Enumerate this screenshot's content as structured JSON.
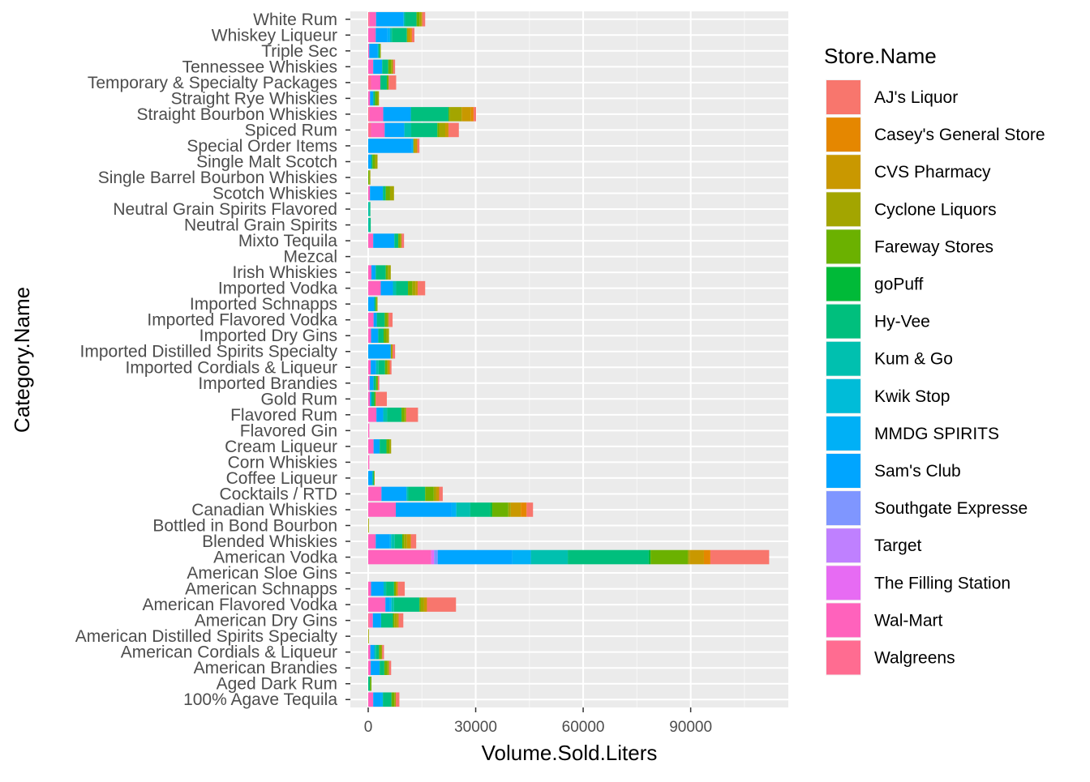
{
  "chart_data": {
    "type": "bar",
    "orientation": "horizontal",
    "stacked": true,
    "xlabel": "Volume.Sold.Liters",
    "ylabel": "Category.Name",
    "xlim": [
      0,
      112000
    ],
    "x_ticks": [
      0,
      30000,
      60000,
      90000
    ],
    "x_tick_labels": [
      "0",
      "30000",
      "60000",
      "90000"
    ],
    "grid": true,
    "legend": {
      "title": "Store.Name",
      "placement": "right",
      "entries": [
        "AJ's Liquor",
        "Casey's General Store",
        "CVS Pharmacy",
        "Cyclone Liquors",
        "Fareway Stores",
        "goPuff",
        "Hy-Vee",
        "Kum & Go",
        "Kwik Stop",
        "MMDG SPIRITS",
        "Sam's Club",
        "Southgate Expresse",
        "Target",
        "The Filling Station",
        "Wal-Mart",
        "Walgreens"
      ]
    },
    "colors": {
      "AJ's Liquor": "#F8766D",
      "Casey's General Store": "#E58700",
      "CVS Pharmacy": "#C99800",
      "Cyclone Liquors": "#A3A500",
      "Fareway Stores": "#6BB100",
      "goPuff": "#00BA38",
      "Hy-Vee": "#00BF7D",
      "Kum & Go": "#00C0AF",
      "Kwik Stop": "#00BCD8",
      "MMDG SPIRITS": "#00B0F6",
      "Sam's Club": "#00A5FF",
      "Southgate Expresse": "#7F96FF",
      "Target": "#BF80FF",
      "The Filling Station": "#E76BF3",
      "Wal-Mart": "#FF62BC",
      "Walgreens": "#FF6C91"
    },
    "categories": [
      "White Rum",
      "Whiskey Liqueur",
      "Triple Sec",
      "Tennessee Whiskies",
      "Temporary & Specialty Packages",
      "Straight Rye Whiskies",
      "Straight Bourbon Whiskies",
      "Spiced Rum",
      "Special Order Items",
      "Single Malt Scotch",
      "Single Barrel Bourbon Whiskies",
      "Scotch Whiskies",
      "Neutral Grain Spirits Flavored",
      "Neutral Grain Spirits",
      "Mixto Tequila",
      "Mezcal",
      "Irish Whiskies",
      "Imported Vodka",
      "Imported Schnapps",
      "Imported Flavored Vodka",
      "Imported Dry Gins",
      "Imported Distilled Spirits Specialty",
      "Imported Cordials & Liqueur",
      "Imported Brandies",
      "Gold Rum",
      "Flavored Rum",
      "Flavored Gin",
      "Cream Liqueur",
      "Corn Whiskies",
      "Coffee Liqueur",
      "Cocktails / RTD",
      "Canadian Whiskies",
      "Bottled in Bond Bourbon",
      "Blended Whiskies",
      "American Vodka",
      "American Sloe Gins",
      "American Schnapps",
      "American Flavored Vodka",
      "American Dry Gins",
      "American Distilled Spirits Specialty",
      "American Cordials & Liqueur",
      "American Brandies",
      "Aged Dark Rum",
      "100% Agave Tequila"
    ],
    "stacks": [
      [
        [
          "Walgreens",
          400
        ],
        [
          "Wal-Mart",
          1800
        ],
        [
          "Sam's Club",
          7700
        ],
        [
          "Kum & Go",
          400
        ],
        [
          "Hy-Vee",
          3200
        ],
        [
          "Fareway Stores",
          800
        ],
        [
          "Cyclone Liquors",
          500
        ],
        [
          "CVS Pharmacy",
          300
        ],
        [
          "AJ's Liquor",
          800
        ]
      ],
      [
        [
          "Wal-Mart",
          2100
        ],
        [
          "Sam's Club",
          3300
        ],
        [
          "MMDG SPIRITS",
          700
        ],
        [
          "Kum & Go",
          500
        ],
        [
          "Hy-Vee",
          4200
        ],
        [
          "Cyclone Liquors",
          400
        ],
        [
          "CVS Pharmacy",
          600
        ],
        [
          "Casey's General Store",
          400
        ],
        [
          "AJ's Liquor",
          700
        ]
      ],
      [
        [
          "Wal-Mart",
          300
        ],
        [
          "Sam's Club",
          2200
        ],
        [
          "MMDG SPIRITS",
          300
        ],
        [
          "Hy-Vee",
          400
        ],
        [
          "Fareway Stores",
          200
        ],
        [
          "Cyclone Liquors",
          100
        ]
      ],
      [
        [
          "Wal-Mart",
          1400
        ],
        [
          "Sam's Club",
          2500
        ],
        [
          "Hy-Vee",
          1700
        ],
        [
          "Fareway Stores",
          800
        ],
        [
          "Cyclone Liquors",
          500
        ],
        [
          "AJ's Liquor",
          600
        ]
      ],
      [
        [
          "Walgreens",
          800
        ],
        [
          "Wal-Mart",
          2600
        ],
        [
          "Hy-Vee",
          1800
        ],
        [
          "Fareway Stores",
          500
        ],
        [
          "AJ's Liquor",
          2100
        ]
      ],
      [
        [
          "Wal-Mart",
          500
        ],
        [
          "Sam's Club",
          900
        ],
        [
          "Hy-Vee",
          500
        ],
        [
          "Fareway Stores",
          700
        ],
        [
          "Cyclone Liquors",
          400
        ]
      ],
      [
        [
          "Walgreens",
          400
        ],
        [
          "Wal-Mart",
          3800
        ],
        [
          "Sam's Club",
          7700
        ],
        [
          "Hy-Vee",
          10500
        ],
        [
          "Fareway Stores",
          400
        ],
        [
          "Cyclone Liquors",
          3300
        ],
        [
          "CVS Pharmacy",
          2600
        ],
        [
          "Casey's General Store",
          700
        ],
        [
          "AJ's Liquor",
          700
        ]
      ],
      [
        [
          "Walgreens",
          800
        ],
        [
          "Wal-Mart",
          3800
        ],
        [
          "Sam's Club",
          5500
        ],
        [
          "Kum & Go",
          1900
        ],
        [
          "Hy-Vee",
          7300
        ],
        [
          "Fareway Stores",
          500
        ],
        [
          "Cyclone Liquors",
          1700
        ],
        [
          "CVS Pharmacy",
          900
        ],
        [
          "AJ's Liquor",
          2900
        ]
      ],
      [
        [
          "Sam's Club",
          12200
        ],
        [
          "MMDG SPIRITS",
          400
        ],
        [
          "Cyclone Liquors",
          400
        ],
        [
          "CVS Pharmacy",
          700
        ],
        [
          "AJ's Liquor",
          600
        ]
      ],
      [
        [
          "Sam's Club",
          800
        ],
        [
          "Hy-Vee",
          400
        ],
        [
          "Fareway Stores",
          700
        ],
        [
          "Cyclone Liquors",
          700
        ]
      ],
      [
        [
          "Fareway Stores",
          300
        ],
        [
          "Cyclone Liquors",
          300
        ]
      ],
      [
        [
          "Wal-Mart",
          500
        ],
        [
          "Sam's Club",
          3600
        ],
        [
          "Hy-Vee",
          800
        ],
        [
          "Fareway Stores",
          1200
        ],
        [
          "Cyclone Liquors",
          1100
        ]
      ],
      [
        [
          "Kum & Go",
          300
        ],
        [
          "Hy-Vee",
          300
        ]
      ],
      [
        [
          "Kum & Go",
          300
        ],
        [
          "Hy-Vee",
          400
        ]
      ],
      [
        [
          "Wal-Mart",
          1400
        ],
        [
          "Sam's Club",
          5900
        ],
        [
          "Hy-Vee",
          1100
        ],
        [
          "Fareway Stores",
          500
        ],
        [
          "Cyclone Liquors",
          400
        ],
        [
          "AJ's Liquor",
          700
        ]
      ],
      [],
      [
        [
          "Wal-Mart",
          900
        ],
        [
          "Sam's Club",
          1200
        ],
        [
          "Hy-Vee",
          2800
        ],
        [
          "Fareway Stores",
          600
        ],
        [
          "Cyclone Liquors",
          800
        ]
      ],
      [
        [
          "Wal-Mart",
          3500
        ],
        [
          "Sam's Club",
          3400
        ],
        [
          "Kum & Go",
          900
        ],
        [
          "Hy-Vee",
          3300
        ],
        [
          "Fareway Stores",
          1200
        ],
        [
          "Cyclone Liquors",
          900
        ],
        [
          "CVS Pharmacy",
          600
        ],
        [
          "AJ's Liquor",
          2100
        ]
      ],
      [
        [
          "Sam's Club",
          1700
        ],
        [
          "Hy-Vee",
          400
        ],
        [
          "Fareway Stores",
          300
        ],
        [
          "Cyclone Liquors",
          200
        ]
      ],
      [
        [
          "Wal-Mart",
          1500
        ],
        [
          "Sam's Club",
          900
        ],
        [
          "Hy-Vee",
          2200
        ],
        [
          "Fareway Stores",
          600
        ],
        [
          "Cyclone Liquors",
          500
        ],
        [
          "AJ's Liquor",
          1100
        ]
      ],
      [
        [
          "Wal-Mart",
          800
        ],
        [
          "Sam's Club",
          2000
        ],
        [
          "Hy-Vee",
          1500
        ],
        [
          "Fareway Stores",
          800
        ],
        [
          "Cyclone Liquors",
          700
        ]
      ],
      [
        [
          "Sam's Club",
          6300
        ],
        [
          "Cyclone Liquors",
          500
        ],
        [
          "AJ's Liquor",
          700
        ]
      ],
      [
        [
          "Wal-Mart",
          700
        ],
        [
          "Sam's Club",
          1500
        ],
        [
          "Kum & Go",
          700
        ],
        [
          "Hy-Vee",
          1800
        ],
        [
          "Fareway Stores",
          700
        ],
        [
          "CVS Pharmacy",
          600
        ],
        [
          "AJ's Liquor",
          500
        ]
      ],
      [
        [
          "Wal-Mart",
          400
        ],
        [
          "Sam's Club",
          1100
        ],
        [
          "Hy-Vee",
          700
        ],
        [
          "Fareway Stores",
          500
        ],
        [
          "AJ's Liquor",
          400
        ]
      ],
      [
        [
          "Wal-Mart",
          500
        ],
        [
          "Sam's Club",
          400
        ],
        [
          "Hy-Vee",
          800
        ],
        [
          "Fareway Stores",
          400
        ],
        [
          "AJ's Liquor",
          3100
        ]
      ],
      [
        [
          "Wal-Mart",
          2300
        ],
        [
          "Sam's Club",
          1900
        ],
        [
          "Kum & Go",
          1100
        ],
        [
          "Hy-Vee",
          4000
        ],
        [
          "Fareway Stores",
          800
        ],
        [
          "Cyclone Liquors",
          500
        ],
        [
          "AJ's Liquor",
          3300
        ]
      ],
      [
        [
          "Wal-Mart",
          300
        ]
      ],
      [
        [
          "Wal-Mart",
          1500
        ],
        [
          "Sam's Club",
          1700
        ],
        [
          "Hy-Vee",
          1900
        ],
        [
          "Fareway Stores",
          800
        ],
        [
          "Cyclone Liquors",
          500
        ]
      ],
      [
        [
          "Wal-Mart",
          300
        ]
      ],
      [
        [
          "Sam's Club",
          1200
        ],
        [
          "Hy-Vee",
          400
        ],
        [
          "Cyclone Liquors",
          200
        ]
      ],
      [
        [
          "Wal-Mart",
          3700
        ],
        [
          "Sam's Club",
          7000
        ],
        [
          "Kum & Go",
          500
        ],
        [
          "Hy-Vee",
          4700
        ],
        [
          "Fareway Stores",
          2400
        ],
        [
          "Cyclone Liquors",
          700
        ],
        [
          "CVS Pharmacy",
          800
        ],
        [
          "AJ's Liquor",
          1000
        ]
      ],
      [
        [
          "Wal-Mart",
          7700
        ],
        [
          "Sam's Club",
          15600
        ],
        [
          "MMDG SPIRITS",
          1300
        ],
        [
          "Kum & Go",
          3900
        ],
        [
          "Hy-Vee",
          5600
        ],
        [
          "goPuff",
          500
        ],
        [
          "Fareway Stores",
          4500
        ],
        [
          "Cyclone Liquors",
          700
        ],
        [
          "CVS Pharmacy",
          2800
        ],
        [
          "Casey's General Store",
          1600
        ],
        [
          "AJ's Liquor",
          1800
        ]
      ],
      [
        [
          "Cyclone Liquors",
          200
        ]
      ],
      [
        [
          "Wal-Mart",
          2100
        ],
        [
          "Sam's Club",
          3800
        ],
        [
          "MMDG SPIRITS",
          500
        ],
        [
          "Kum & Go",
          1000
        ],
        [
          "Hy-Vee",
          2100
        ],
        [
          "Fareway Stores",
          500
        ],
        [
          "Cyclone Liquors",
          800
        ],
        [
          "CVS Pharmacy",
          1100
        ],
        [
          "AJ's Liquor",
          1500
        ]
      ],
      [
        [
          "Wal-Mart",
          17600
        ],
        [
          "The Filling Station",
          800
        ],
        [
          "Southgate Expresse",
          1000
        ],
        [
          "Sam's Club",
          20800
        ],
        [
          "MMDG SPIRITS",
          5200
        ],
        [
          "Kum & Go",
          10300
        ],
        [
          "Hy-Vee",
          22600
        ],
        [
          "goPuff",
          500
        ],
        [
          "Fareway Stores",
          10400
        ],
        [
          "Cyclone Liquors",
          500
        ],
        [
          "CVS Pharmacy",
          4000
        ],
        [
          "Casey's General Store",
          1800
        ],
        [
          "AJ's Liquor",
          16400
        ]
      ],
      [],
      [
        [
          "Wal-Mart",
          800
        ],
        [
          "Sam's Club",
          3500
        ],
        [
          "Kum & Go",
          700
        ],
        [
          "Hy-Vee",
          2200
        ],
        [
          "Fareway Stores",
          500
        ],
        [
          "CVS Pharmacy",
          600
        ],
        [
          "AJ's Liquor",
          1900
        ]
      ],
      [
        [
          "Wal-Mart",
          4800
        ],
        [
          "Sam's Club",
          1100
        ],
        [
          "MMDG SPIRITS",
          600
        ],
        [
          "Kum & Go",
          700
        ],
        [
          "Hy-Vee",
          7100
        ],
        [
          "Fareway Stores",
          400
        ],
        [
          "Cyclone Liquors",
          900
        ],
        [
          "CVS Pharmacy",
          800
        ],
        [
          "AJ's Liquor",
          8100
        ]
      ],
      [
        [
          "Walgreens",
          400
        ],
        [
          "Wal-Mart",
          900
        ],
        [
          "Sam's Club",
          2300
        ],
        [
          "Hy-Vee",
          3300
        ],
        [
          "Fareway Stores",
          400
        ],
        [
          "Cyclone Liquors",
          800
        ],
        [
          "CVS Pharmacy",
          400
        ],
        [
          "AJ's Liquor",
          1300
        ]
      ],
      [
        [
          "Cyclone Liquors",
          200
        ]
      ],
      [
        [
          "Wal-Mart",
          600
        ],
        [
          "Sam's Club",
          1100
        ],
        [
          "Kum & Go",
          500
        ],
        [
          "Hy-Vee",
          800
        ],
        [
          "Fareway Stores",
          500
        ],
        [
          "Cyclone Liquors",
          400
        ],
        [
          "AJ's Liquor",
          500
        ]
      ],
      [
        [
          "Wal-Mart",
          700
        ],
        [
          "Sam's Club",
          2500
        ],
        [
          "Hy-Vee",
          1300
        ],
        [
          "Fareway Stores",
          800
        ],
        [
          "Cyclone Liquors",
          500
        ],
        [
          "AJ's Liquor",
          600
        ]
      ],
      [
        [
          "Hy-Vee",
          500
        ],
        [
          "Fareway Stores",
          400
        ]
      ],
      [
        [
          "Wal-Mart",
          1400
        ],
        [
          "Sam's Club",
          2100
        ],
        [
          "MMDG SPIRITS",
          600
        ],
        [
          "Hy-Vee",
          2400
        ],
        [
          "Fareway Stores",
          800
        ],
        [
          "Cyclone Liquors",
          400
        ],
        [
          "AJ's Liquor",
          1000
        ]
      ]
    ]
  }
}
